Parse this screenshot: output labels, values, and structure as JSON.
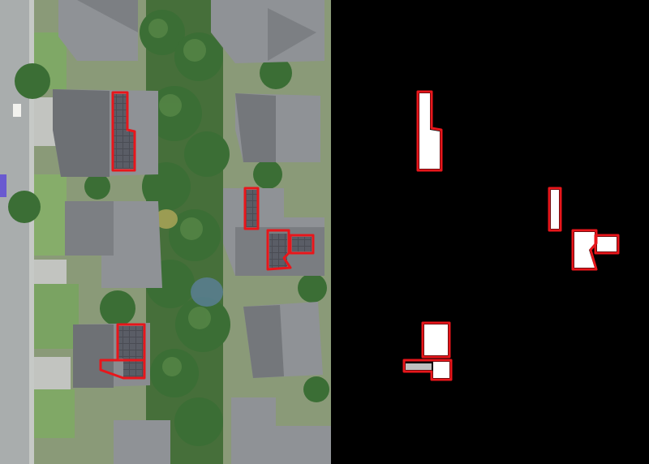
{
  "figure": {
    "panels": [
      {
        "id": "aerial",
        "kind": "aerial-photo"
      },
      {
        "id": "mask",
        "kind": "segmentation-mask"
      }
    ],
    "colors": {
      "outline": "#e8161b",
      "mask_foreground": "#ffffff",
      "mask_background": "#000000",
      "roof": "#8f9296",
      "roof_dark": "#6d7074",
      "tree": "#3b6e35",
      "grass": "#7fa866",
      "road": "#a9adad",
      "solar_panel": "#4a4c54"
    },
    "detections": {
      "count": 6
    }
  }
}
